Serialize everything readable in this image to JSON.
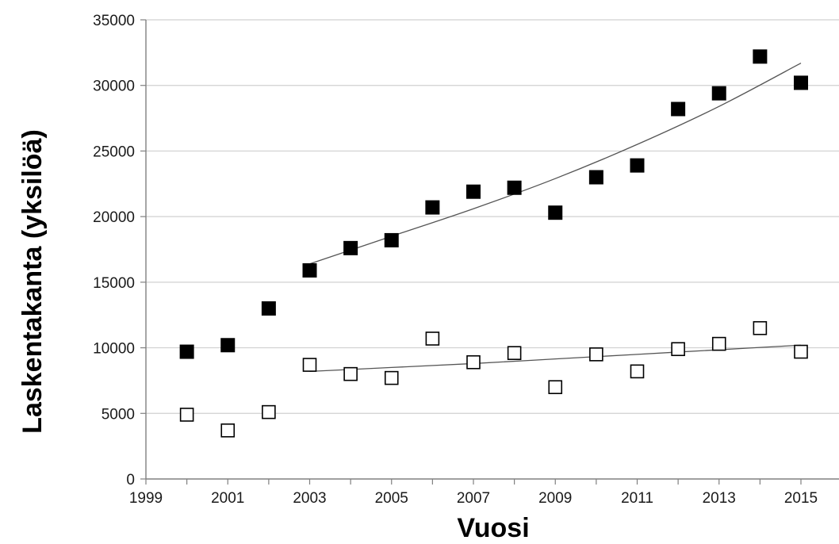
{
  "chart_data": {
    "type": "scatter",
    "title": "",
    "xlabel": "Vuosi",
    "ylabel": "Laskentakanta (yksilöä)",
    "xlim": [
      1999,
      2016
    ],
    "ylim": [
      0,
      35000
    ],
    "x_ticks": [
      1999,
      2001,
      2003,
      2005,
      2007,
      2009,
      2011,
      2013,
      2015
    ],
    "y_ticks": [
      0,
      5000,
      10000,
      15000,
      20000,
      25000,
      30000,
      35000
    ],
    "grid": "horizontal",
    "legend": "none",
    "series": [
      {
        "marker": "filled-square",
        "color": "#000000",
        "points": [
          {
            "x": 2000,
            "y": 9700
          },
          {
            "x": 2001,
            "y": 10200
          },
          {
            "x": 2002,
            "y": 13000
          },
          {
            "x": 2003,
            "y": 15900
          },
          {
            "x": 2004,
            "y": 17600
          },
          {
            "x": 2005,
            "y": 18200
          },
          {
            "x": 2006,
            "y": 20700
          },
          {
            "x": 2007,
            "y": 21900
          },
          {
            "x": 2008,
            "y": 22200
          },
          {
            "x": 2009,
            "y": 20300
          },
          {
            "x": 2010,
            "y": 23000
          },
          {
            "x": 2011,
            "y": 23900
          },
          {
            "x": 2012,
            "y": 28200
          },
          {
            "x": 2013,
            "y": 29400
          },
          {
            "x": 2014,
            "y": 32200
          },
          {
            "x": 2015,
            "y": 30200
          }
        ],
        "trend": {
          "x_range": [
            2003,
            2015
          ],
          "points": [
            {
              "x": 2003,
              "y": 16400
            },
            {
              "x": 2005,
              "y": 18500
            },
            {
              "x": 2007,
              "y": 20600
            },
            {
              "x": 2009,
              "y": 22900
            },
            {
              "x": 2011,
              "y": 25500
            },
            {
              "x": 2013,
              "y": 28400
            },
            {
              "x": 2015,
              "y": 31700
            }
          ]
        }
      },
      {
        "marker": "open-square",
        "color": "#000000",
        "points": [
          {
            "x": 2000,
            "y": 4900
          },
          {
            "x": 2001,
            "y": 3700
          },
          {
            "x": 2002,
            "y": 5100
          },
          {
            "x": 2003,
            "y": 8700
          },
          {
            "x": 2004,
            "y": 8000
          },
          {
            "x": 2005,
            "y": 7700
          },
          {
            "x": 2006,
            "y": 10700
          },
          {
            "x": 2007,
            "y": 8900
          },
          {
            "x": 2008,
            "y": 9600
          },
          {
            "x": 2009,
            "y": 7000
          },
          {
            "x": 2010,
            "y": 9500
          },
          {
            "x": 2011,
            "y": 8200
          },
          {
            "x": 2012,
            "y": 9900
          },
          {
            "x": 2013,
            "y": 10300
          },
          {
            "x": 2014,
            "y": 11500
          },
          {
            "x": 2015,
            "y": 9700
          }
        ],
        "trend": {
          "x_range": [
            2003,
            2015
          ],
          "points": [
            {
              "x": 2003,
              "y": 8200
            },
            {
              "x": 2005,
              "y": 8500
            },
            {
              "x": 2007,
              "y": 8800
            },
            {
              "x": 2009,
              "y": 9150
            },
            {
              "x": 2011,
              "y": 9500
            },
            {
              "x": 2013,
              "y": 9850
            },
            {
              "x": 2015,
              "y": 10200
            }
          ]
        }
      }
    ]
  },
  "colors": {
    "gridline": "#d0d0d0",
    "axis": "#808080",
    "trendline": "#555555"
  }
}
